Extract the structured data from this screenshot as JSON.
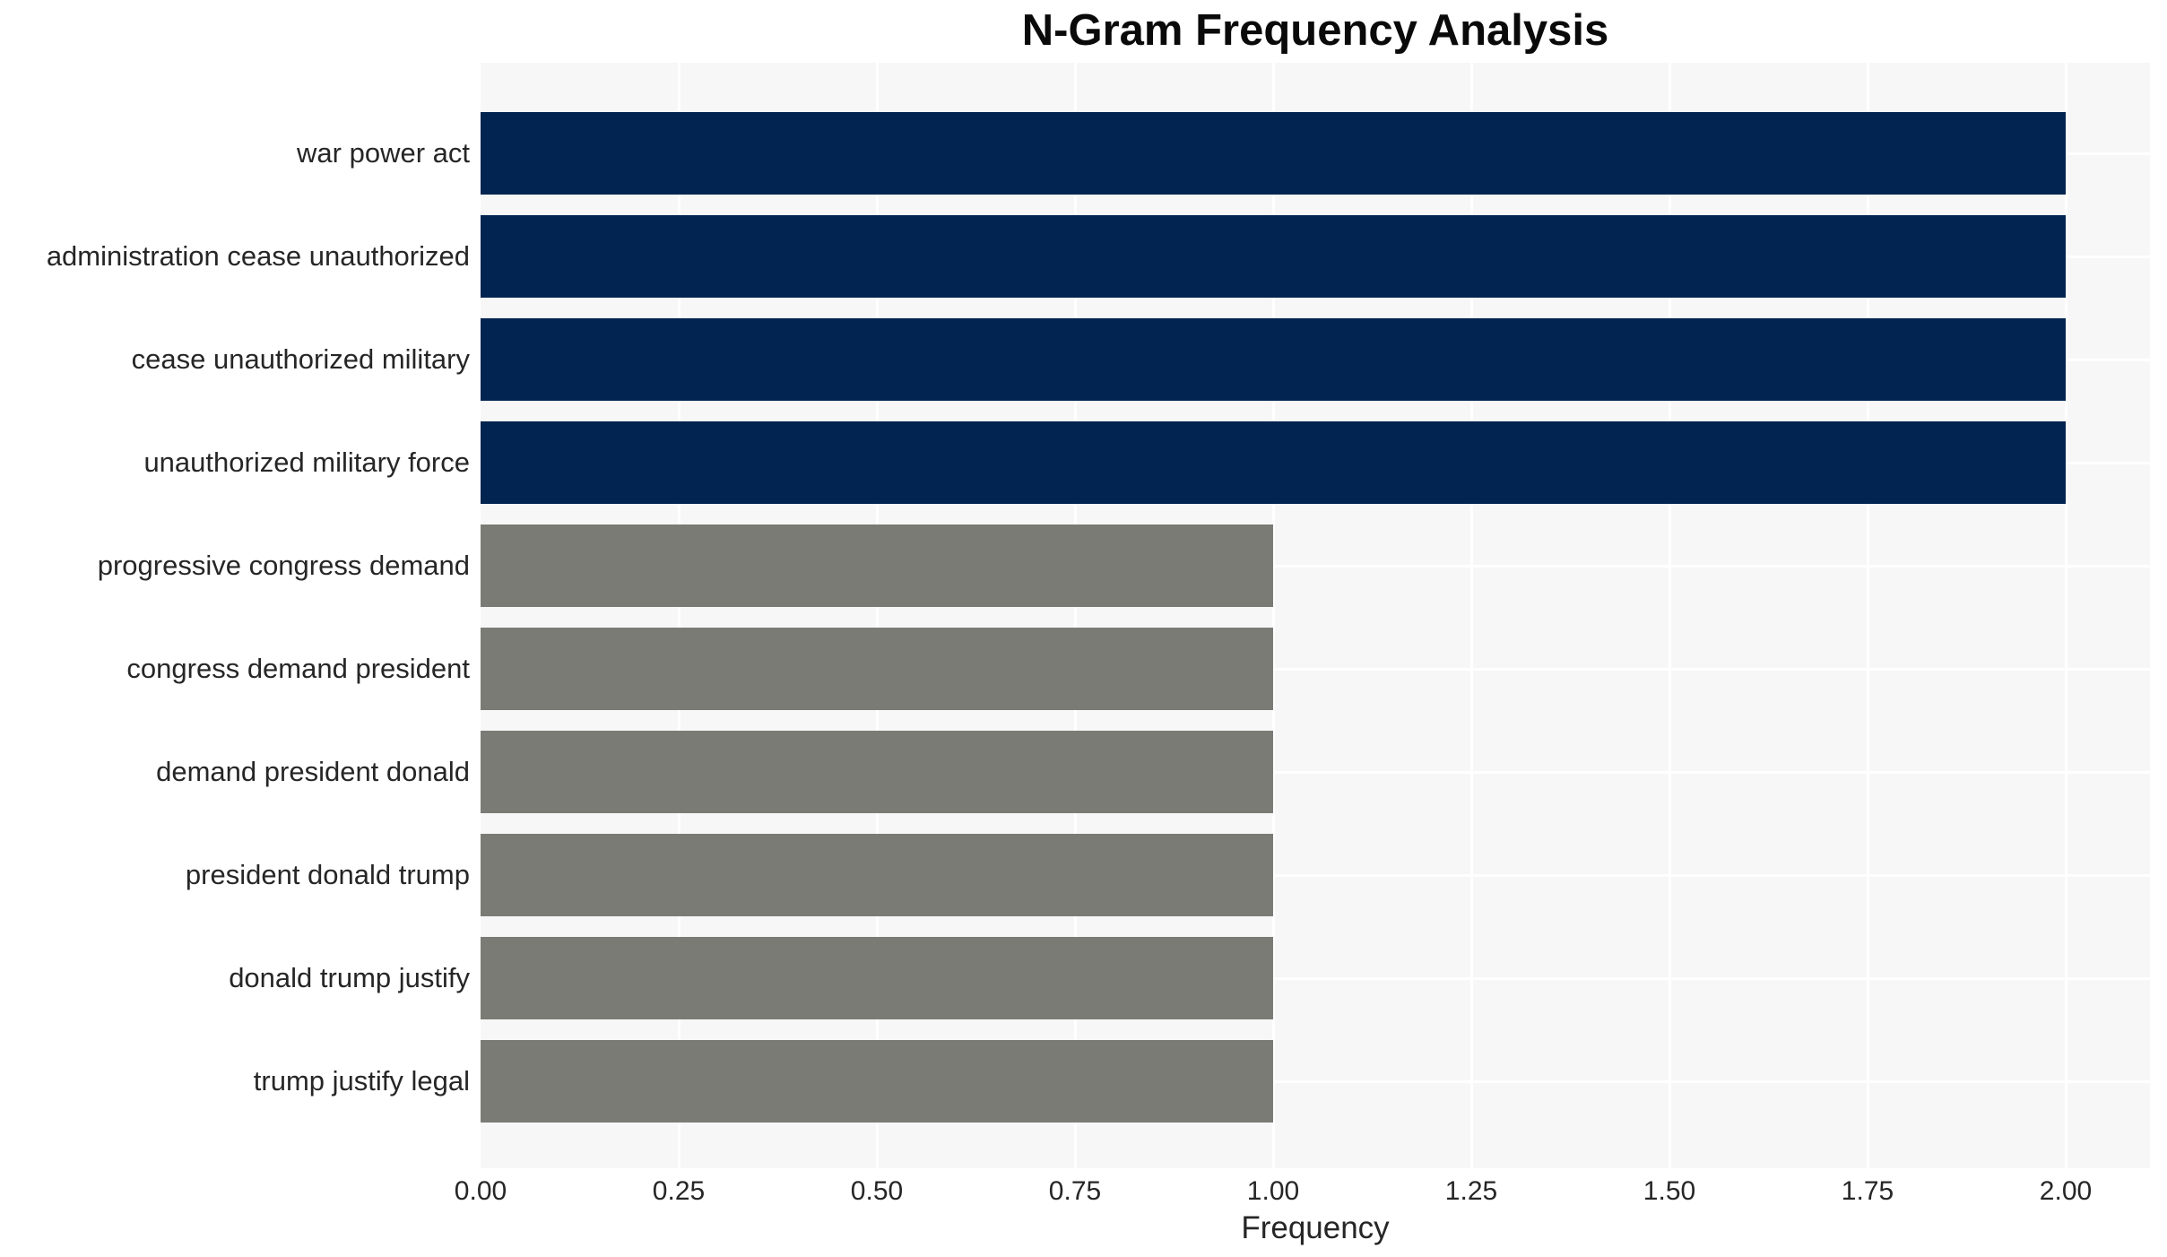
{
  "chart_data": {
    "type": "bar",
    "orientation": "horizontal",
    "title": "N-Gram Frequency Analysis",
    "xlabel": "Frequency",
    "ylabel": "",
    "grid": true,
    "legend": false,
    "xlim": [
      0,
      2.1
    ],
    "x_ticks": [
      "0.00",
      "0.25",
      "0.50",
      "0.75",
      "1.00",
      "1.25",
      "1.50",
      "1.75",
      "2.00"
    ],
    "x_tick_values": [
      0,
      0.25,
      0.5,
      0.75,
      1.0,
      1.25,
      1.5,
      1.75,
      2.0
    ],
    "categories": [
      "war power act",
      "administration cease unauthorized",
      "cease unauthorized military",
      "unauthorized military force",
      "progressive congress demand",
      "congress demand president",
      "demand president donald",
      "president donald trump",
      "donald trump justify",
      "trump justify legal"
    ],
    "values": [
      2,
      2,
      2,
      2,
      1,
      1,
      1,
      1,
      1,
      1
    ],
    "bar_colors": [
      "#022450",
      "#022450",
      "#022450",
      "#022450",
      "#7b7b76",
      "#7b7b76",
      "#7b7b76",
      "#7b7b76",
      "#7b7b76",
      "#7b7b76"
    ],
    "colors": {
      "high_frequency_bar": "#022450",
      "low_frequency_bar": "#7b7b76",
      "plot_background": "#f7f7f7",
      "gridline": "#ffffff",
      "tick_text": "#262626",
      "title_text": "#0a0a0a"
    }
  }
}
